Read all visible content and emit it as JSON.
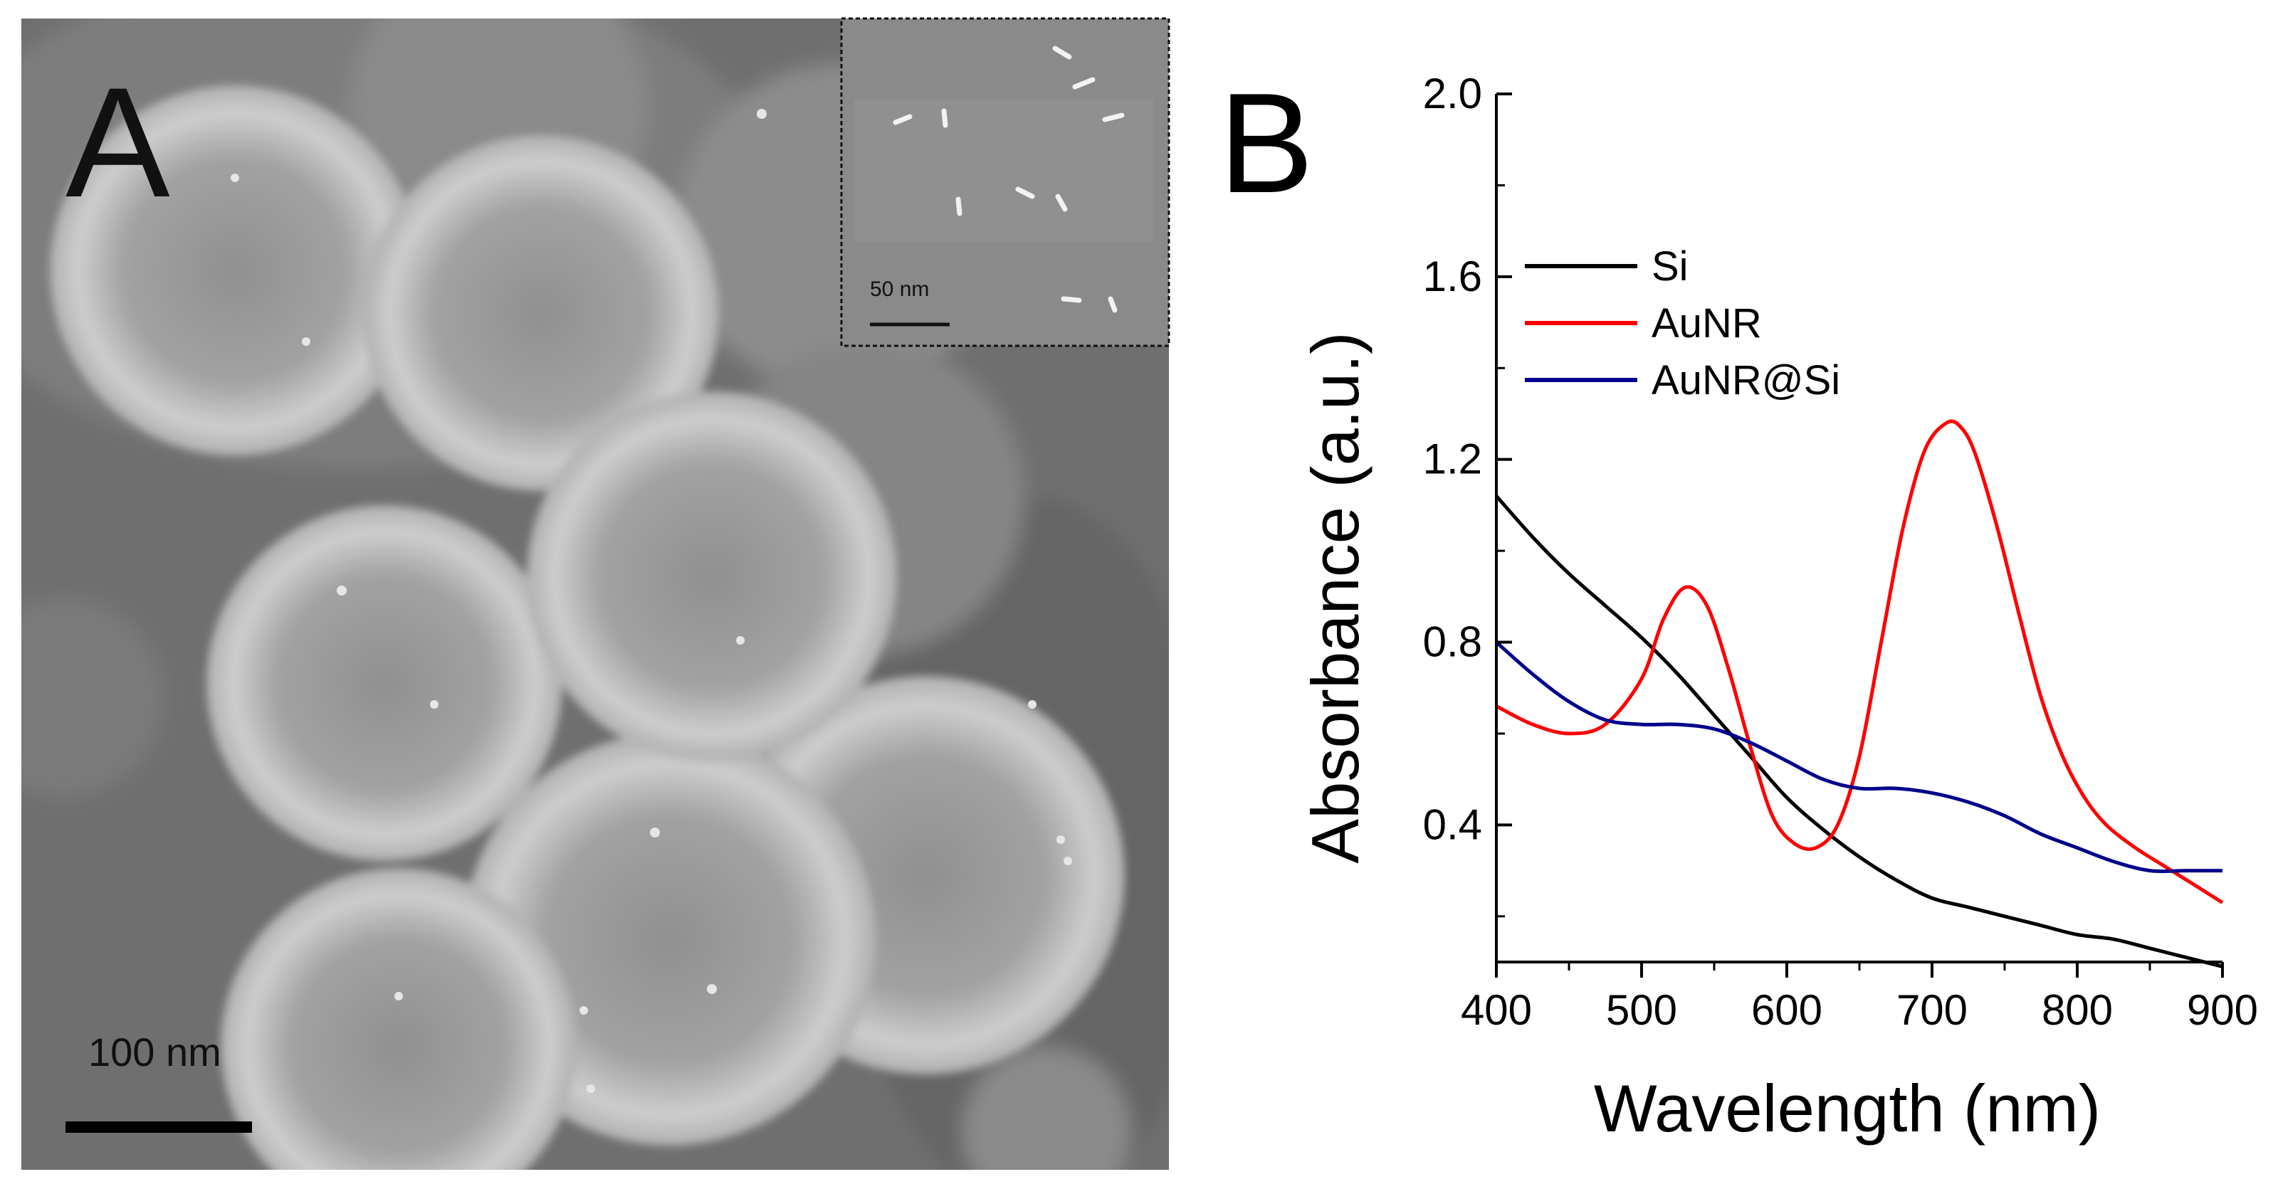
{
  "panel_a": {
    "letter": "A",
    "scale_bar_label": "100 nm",
    "inset_scale_bar_label": "50 nm"
  },
  "panel_b": {
    "letter": "B"
  },
  "chart_data": {
    "type": "line",
    "xlabel": "Wavelength (nm)",
    "ylabel": "Absorbance (a.u.)",
    "xlim": [
      400,
      900
    ],
    "ylim": [
      0.1,
      2.0
    ],
    "xticks": [
      400,
      500,
      600,
      700,
      800,
      900
    ],
    "yticks": [
      0.4,
      0.8,
      1.2,
      1.6,
      2.0
    ],
    "ytick_labels": [
      "0.4",
      "0.8",
      "1.2",
      "1.6",
      "2.0"
    ],
    "legend_placement": "upper-left",
    "grid": false,
    "series": [
      {
        "name": "Si",
        "color": "#000000",
        "x": [
          400,
          425,
          450,
          475,
          500,
          525,
          550,
          575,
          600,
          625,
          650,
          675,
          700,
          725,
          750,
          775,
          800,
          825,
          850,
          875,
          900
        ],
        "y": [
          1.12,
          1.03,
          0.95,
          0.88,
          0.81,
          0.73,
          0.64,
          0.55,
          0.46,
          0.39,
          0.33,
          0.28,
          0.24,
          0.22,
          0.2,
          0.18,
          0.16,
          0.15,
          0.13,
          0.11,
          0.09
        ]
      },
      {
        "name": "AuNR",
        "color": "#ff0000",
        "x": [
          400,
          425,
          450,
          475,
          500,
          515,
          530,
          545,
          560,
          575,
          590,
          605,
          620,
          635,
          650,
          665,
          680,
          695,
          710,
          720,
          730,
          745,
          760,
          775,
          790,
          805,
          820,
          840,
          860,
          880,
          900
        ],
        "y": [
          0.66,
          0.62,
          0.6,
          0.62,
          0.72,
          0.85,
          0.92,
          0.88,
          0.74,
          0.57,
          0.42,
          0.36,
          0.35,
          0.4,
          0.55,
          0.8,
          1.05,
          1.22,
          1.28,
          1.27,
          1.21,
          1.05,
          0.86,
          0.68,
          0.55,
          0.46,
          0.4,
          0.35,
          0.31,
          0.27,
          0.23
        ]
      },
      {
        "name": "AuNR@Si",
        "color": "#00008b",
        "x": [
          400,
          425,
          450,
          475,
          500,
          525,
          550,
          575,
          600,
          625,
          650,
          675,
          700,
          725,
          750,
          775,
          800,
          825,
          850,
          875,
          900
        ],
        "y": [
          0.8,
          0.73,
          0.67,
          0.63,
          0.62,
          0.62,
          0.61,
          0.58,
          0.54,
          0.5,
          0.48,
          0.48,
          0.47,
          0.45,
          0.42,
          0.38,
          0.35,
          0.32,
          0.3,
          0.3,
          0.3
        ]
      }
    ]
  }
}
